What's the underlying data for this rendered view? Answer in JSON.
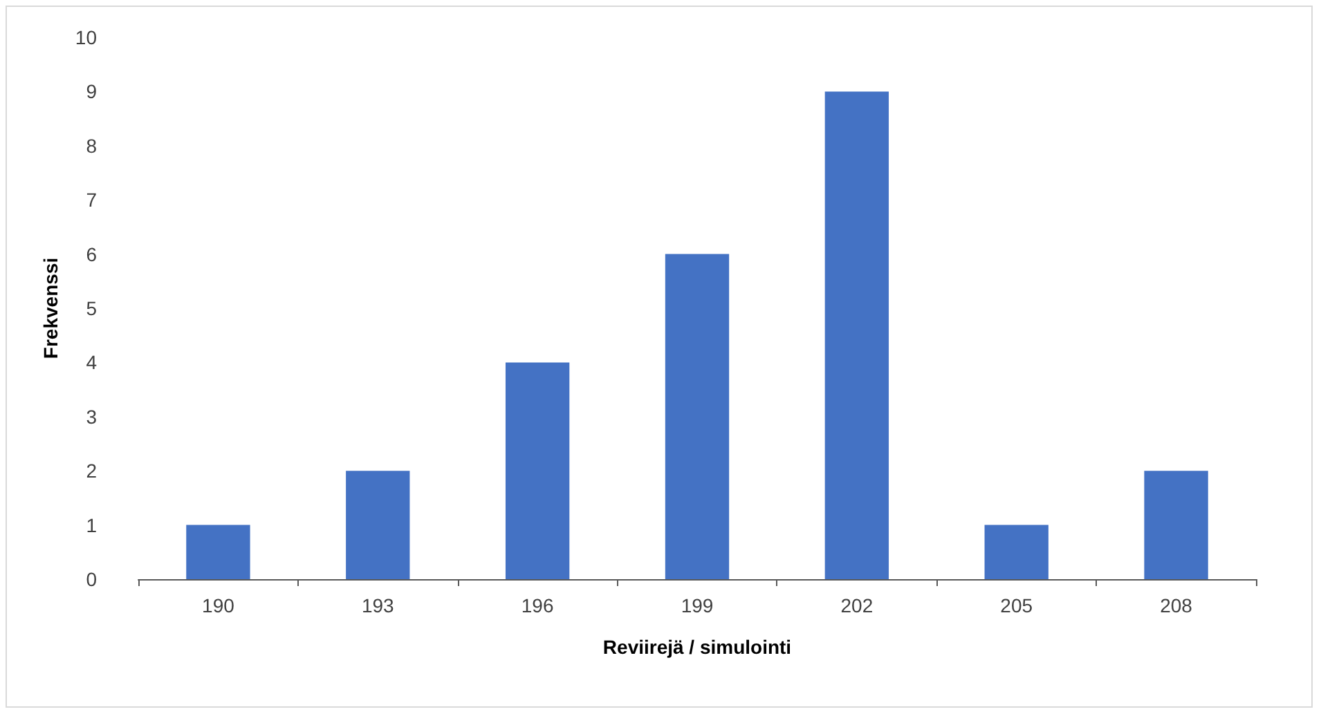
{
  "chart_data": {
    "type": "bar",
    "xlabel": "Reviirejä / simulointi",
    "ylabel": "Frekvenssi",
    "categories": [
      "190",
      "193",
      "196",
      "199",
      "202",
      "205",
      "208"
    ],
    "values": [
      1,
      2,
      4,
      6,
      9,
      1,
      2
    ],
    "color": "#4472c4",
    "ylim": [
      0,
      10
    ],
    "yticks": [
      0,
      1,
      2,
      3,
      4,
      5,
      6,
      7,
      8,
      9,
      10
    ],
    "grid": false
  }
}
